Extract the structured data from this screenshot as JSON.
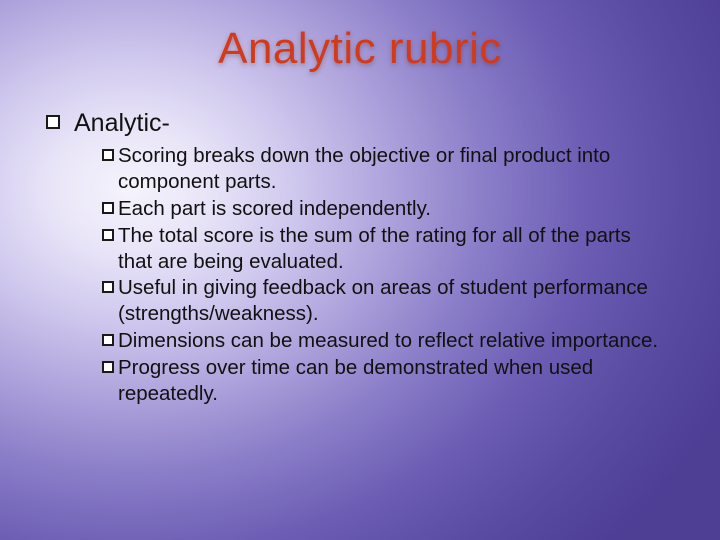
{
  "title": "Analytic rubric",
  "title_color": "#d43a1a",
  "title_fontsize": 44,
  "background": {
    "type": "radial-gradient",
    "center": "18% 35%",
    "stops": [
      "#f5f3fc",
      "#e9e5f8",
      "#d0c9ee",
      "#aea3dc",
      "#8a7dc8",
      "#6d5eb4",
      "#5a4ba3",
      "#4e3f95"
    ]
  },
  "body_text_color": "#111111",
  "bullet_style": "hollow-square",
  "level1": {
    "text": "Analytic-",
    "fontsize": 25
  },
  "level2_fontsize": 20.5,
  "level2": [
    "Scoring breaks down the objective or final product into component parts.",
    "Each part is scored independently.",
    "The total score is the sum of the rating for all of the parts that are being evaluated.",
    "Useful in giving feedback on areas of student performance (strengths/weakness).",
    "Dimensions can be measured to reflect relative importance.",
    "Progress over time can be demonstrated when used repeatedly."
  ]
}
